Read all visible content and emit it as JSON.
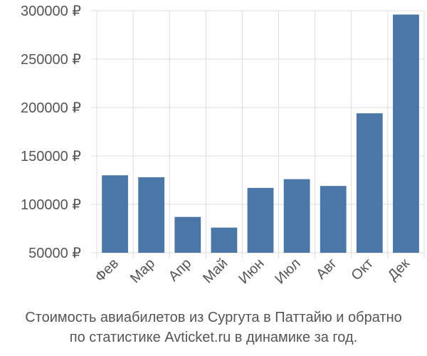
{
  "chart_data": {
    "type": "bar",
    "categories": [
      "Фев",
      "Мар",
      "Апр",
      "Май",
      "Июн",
      "Июл",
      "Авг",
      "Окт",
      "Дек"
    ],
    "values": [
      130000,
      128000,
      87000,
      76000,
      117000,
      126000,
      119000,
      194000,
      296000
    ],
    "ylim": [
      50000,
      300000
    ],
    "yticks": [
      50000,
      100000,
      150000,
      200000,
      250000,
      300000
    ],
    "ytick_labels": [
      "50000 ₽",
      "100000 ₽",
      "150000 ₽",
      "200000 ₽",
      "250000 ₽",
      "300000 ₽"
    ],
    "grid": true,
    "bar_color": "#4a76a8",
    "grid_color": "#dddddd",
    "text_color": "#555555"
  },
  "caption": {
    "line1": "Стоимость авиабилетов из Сургута в Паттайю и обратно",
    "line2": "по статистике Avticket.ru в динамике за год."
  }
}
